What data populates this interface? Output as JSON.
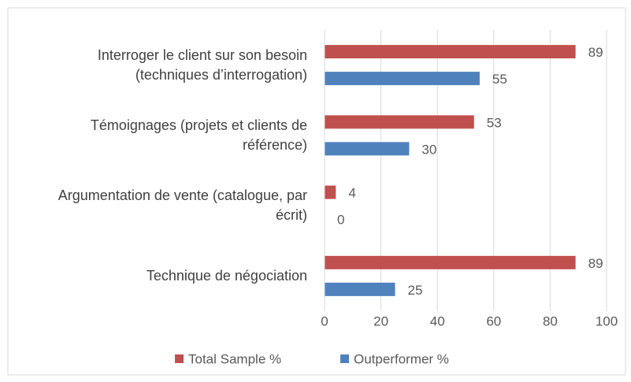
{
  "chart_data": {
    "type": "bar",
    "orientation": "horizontal",
    "categories": [
      "Interroger le client sur son besoin (techniques d’interrogation)",
      "Témoignages (projets et clients de référence)",
      "Argumentation de vente (catalogue, par écrit)",
      "Technique de négociation"
    ],
    "series": [
      {
        "name": "Total Sample %",
        "color": "#c0504d",
        "values": [
          89,
          53,
          4,
          89
        ]
      },
      {
        "name": "Outperformer %",
        "color": "#4f81bd",
        "values": [
          55,
          30,
          0,
          25
        ]
      }
    ],
    "xlim": [
      0,
      100
    ],
    "xticks": [
      0,
      20,
      40,
      60,
      80,
      100
    ],
    "grid": true,
    "legend": "bottom"
  }
}
